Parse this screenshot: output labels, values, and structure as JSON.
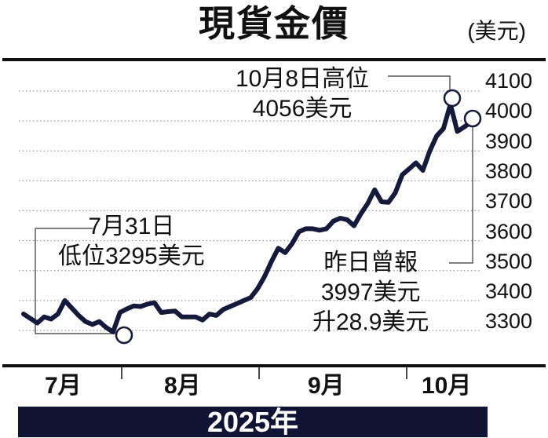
{
  "title": "現貨金價",
  "unit": "(美元)",
  "year_label": "2025年",
  "months": [
    "7月",
    "8月",
    "9月",
    "10月"
  ],
  "y_ticks": [
    "4100",
    "4000",
    "3900",
    "3800",
    "3700",
    "3600",
    "3500",
    "3400",
    "3300"
  ],
  "annotations": {
    "high": {
      "line1": "10月8日高位",
      "line2": "4056美元"
    },
    "low": {
      "line1": "7月31日",
      "line2": "低位3295美元"
    },
    "latest": {
      "line1": "昨日曾報",
      "line2": "3997美元",
      "line3": "升28.9美元"
    }
  },
  "colors": {
    "line": "#161a3a",
    "year_bar": "#101333",
    "grid": "#9a9a9a"
  },
  "chart_data": {
    "type": "line",
    "title": "現貨金價",
    "ylabel": "美元",
    "xlabel": "2025年",
    "x_tick_labels": [
      "7月",
      "8月",
      "9月",
      "10月"
    ],
    "ylim": [
      3300,
      4100
    ],
    "y_ticks": [
      3300,
      3400,
      3500,
      3600,
      3700,
      3800,
      3900,
      4000,
      4100
    ],
    "grid": "horizontal dotted",
    "series": [
      {
        "name": "現貨金價",
        "values_note": "Approximate values read from the line's pixel positions; only 3295 (7/31 low), 4056 (10/8 high) and 3997 (latest) are labeled in the image.",
        "values": [
          3355,
          3340,
          3325,
          3345,
          3338,
          3355,
          3400,
          3375,
          3350,
          3330,
          3320,
          3330,
          3310,
          3295,
          3360,
          3372,
          3382,
          3380,
          3388,
          3393,
          3360,
          3363,
          3365,
          3345,
          3345,
          3345,
          3335,
          3355,
          3350,
          3370,
          3380,
          3390,
          3400,
          3410,
          3440,
          3480,
          3530,
          3575,
          3560,
          3590,
          3630,
          3640,
          3640,
          3635,
          3640,
          3665,
          3675,
          3670,
          3650,
          3690,
          3725,
          3770,
          3730,
          3728,
          3760,
          3820,
          3840,
          3860,
          3835,
          3900,
          3950,
          3975,
          4056,
          3965,
          3980,
          3997
        ]
      }
    ],
    "annotations": [
      {
        "label": "10月8日高位 4056美元",
        "value": 4056
      },
      {
        "label": "7月31日 低位3295美元",
        "value": 3295
      },
      {
        "label": "昨日曾報 3997美元 升28.9美元",
        "value": 3997
      }
    ]
  }
}
